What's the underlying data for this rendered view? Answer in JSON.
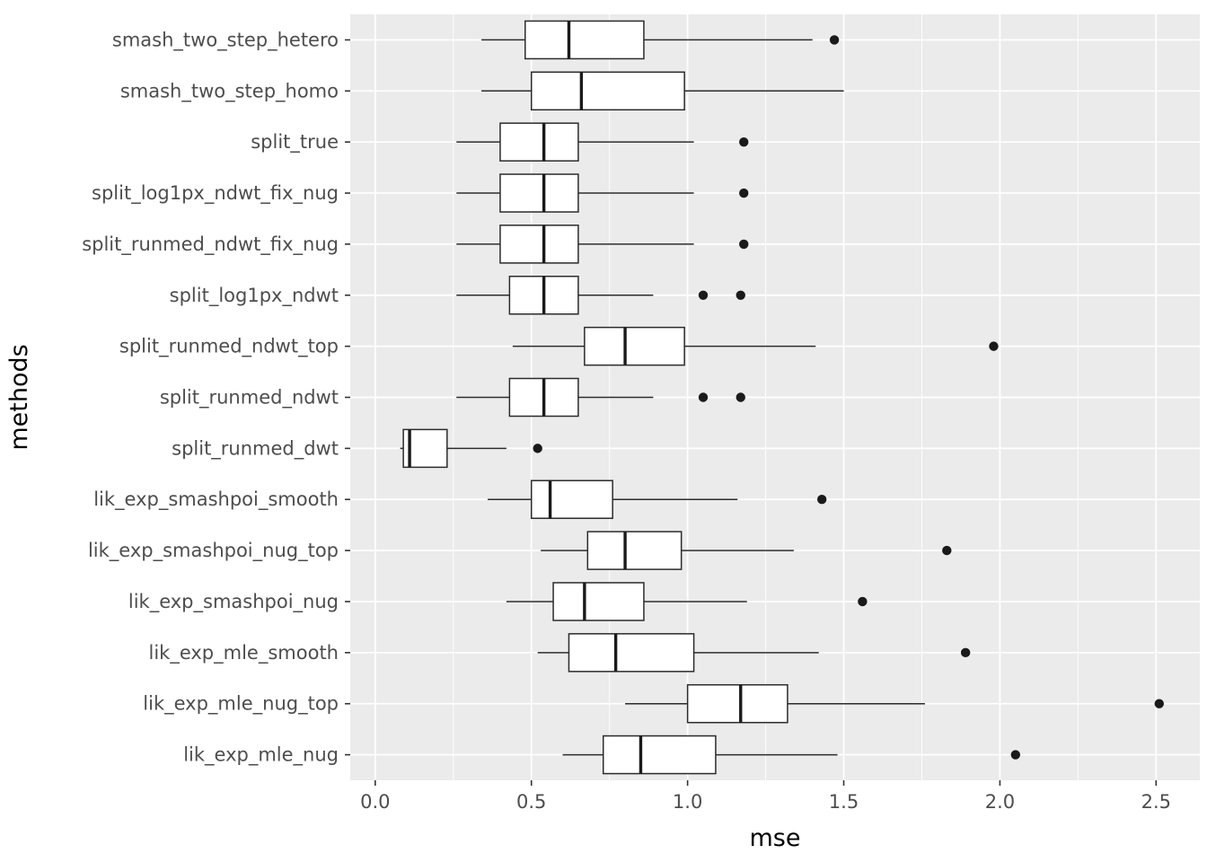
{
  "figure": {
    "background": "#FFFFFF"
  },
  "chart_data": {
    "type": "boxplot",
    "orientation": "horizontal",
    "title": "",
    "xlabel": "mse",
    "ylabel": "methods",
    "axis": {
      "xlim": [
        -0.08,
        2.64
      ],
      "x_ticks": [
        0.0,
        0.5,
        1.0,
        1.5,
        2.0,
        2.5
      ],
      "x_minor_ticks": [
        0.25,
        0.75,
        1.25,
        1.75,
        2.25
      ],
      "grid": true,
      "legend_position": "none"
    },
    "style": {
      "panel_bg": "#EBEBEB",
      "grid_color": "#FFFFFF",
      "box_fill": "#FFFFFF",
      "box_stroke": "#2B2B2B",
      "median_stroke": "#1A1A1A",
      "outlier_color": "#1A1A1A",
      "tick_color": "#333333",
      "tick_label_color": "#4D4D4D",
      "axis_title_color": "#000000"
    },
    "categories": [
      "smash_two_step_hetero",
      "smash_two_step_homo",
      "split_true",
      "split_log1px_ndwt_fix_nug",
      "split_runmed_ndwt_fix_nug",
      "split_log1px_ndwt",
      "split_runmed_ndwt_top",
      "split_runmed_ndwt",
      "split_runmed_dwt",
      "lik_exp_smashpoi_smooth",
      "lik_exp_smashpoi_nug_top",
      "lik_exp_smashpoi_nug",
      "lik_exp_mle_smooth",
      "lik_exp_mle_nug_top",
      "lik_exp_mle_nug"
    ],
    "boxes": [
      {
        "label": "smash_two_step_hetero",
        "whisker_low": 0.34,
        "q1": 0.48,
        "median": 0.62,
        "q3": 0.86,
        "whisker_high": 1.4,
        "outliers": [
          1.47
        ]
      },
      {
        "label": "smash_two_step_homo",
        "whisker_low": 0.34,
        "q1": 0.5,
        "median": 0.66,
        "q3": 0.99,
        "whisker_high": 1.5,
        "outliers": []
      },
      {
        "label": "split_true",
        "whisker_low": 0.26,
        "q1": 0.4,
        "median": 0.54,
        "q3": 0.65,
        "whisker_high": 1.02,
        "outliers": [
          1.18
        ]
      },
      {
        "label": "split_log1px_ndwt_fix_nug",
        "whisker_low": 0.26,
        "q1": 0.4,
        "median": 0.54,
        "q3": 0.65,
        "whisker_high": 1.02,
        "outliers": [
          1.18
        ]
      },
      {
        "label": "split_runmed_ndwt_fix_nug",
        "whisker_low": 0.26,
        "q1": 0.4,
        "median": 0.54,
        "q3": 0.65,
        "whisker_high": 1.02,
        "outliers": [
          1.18
        ]
      },
      {
        "label": "split_log1px_ndwt",
        "whisker_low": 0.26,
        "q1": 0.43,
        "median": 0.54,
        "q3": 0.65,
        "whisker_high": 0.89,
        "outliers": [
          1.05,
          1.17
        ]
      },
      {
        "label": "split_runmed_ndwt_top",
        "whisker_low": 0.44,
        "q1": 0.67,
        "median": 0.8,
        "q3": 0.99,
        "whisker_high": 1.41,
        "outliers": [
          1.98
        ]
      },
      {
        "label": "split_runmed_ndwt",
        "whisker_low": 0.26,
        "q1": 0.43,
        "median": 0.54,
        "q3": 0.65,
        "whisker_high": 0.89,
        "outliers": [
          1.05,
          1.17
        ]
      },
      {
        "label": "split_runmed_dwt",
        "whisker_low": 0.08,
        "q1": 0.09,
        "median": 0.11,
        "q3": 0.23,
        "whisker_high": 0.42,
        "outliers": [
          0.52
        ]
      },
      {
        "label": "lik_exp_smashpoi_smooth",
        "whisker_low": 0.36,
        "q1": 0.5,
        "median": 0.56,
        "q3": 0.76,
        "whisker_high": 1.16,
        "outliers": [
          1.43
        ]
      },
      {
        "label": "lik_exp_smashpoi_nug_top",
        "whisker_low": 0.53,
        "q1": 0.68,
        "median": 0.8,
        "q3": 0.98,
        "whisker_high": 1.34,
        "outliers": [
          1.83
        ]
      },
      {
        "label": "lik_exp_smashpoi_nug",
        "whisker_low": 0.42,
        "q1": 0.57,
        "median": 0.67,
        "q3": 0.86,
        "whisker_high": 1.19,
        "outliers": [
          1.56
        ]
      },
      {
        "label": "lik_exp_mle_smooth",
        "whisker_low": 0.52,
        "q1": 0.62,
        "median": 0.77,
        "q3": 1.02,
        "whisker_high": 1.42,
        "outliers": [
          1.89
        ]
      },
      {
        "label": "lik_exp_mle_nug_top",
        "whisker_low": 0.8,
        "q1": 1.0,
        "median": 1.17,
        "q3": 1.32,
        "whisker_high": 1.76,
        "outliers": [
          2.51
        ]
      },
      {
        "label": "lik_exp_mle_nug",
        "whisker_low": 0.6,
        "q1": 0.73,
        "median": 0.85,
        "q3": 1.09,
        "whisker_high": 1.48,
        "outliers": [
          2.05
        ]
      }
    ]
  }
}
